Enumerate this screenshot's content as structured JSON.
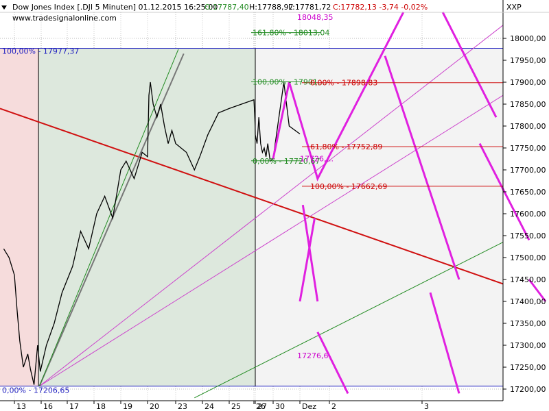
{
  "header": {
    "title": "Dow Jones Index [.DJI  5 Minuten] 01.12.2015 16:25:00",
    "open": "O:17787,40",
    "high": "H:17788,97",
    "low": "L:17781,72",
    "close_change": "C:17782,13 -3,74 -0,02%",
    "website": "www.tradesignalonline.com",
    "axis_name": "XXP"
  },
  "chart_data": {
    "type": "line",
    "title": "Dow Jones Index [.DJI  5 Minuten]",
    "ylim": [
      17180,
      18060
    ],
    "yticks": [
      18000,
      17950,
      17900,
      17850,
      17800,
      17750,
      17700,
      17650,
      17600,
      17550,
      17500,
      17450,
      17400,
      17350,
      17300,
      17250,
      17200
    ],
    "ytick_labels": [
      "18000,00",
      "17950,00",
      "17900,00",
      "17850,00",
      "17800,00",
      "17750,00",
      "17700,00",
      "17650,00",
      "17600,00",
      "17550,00",
      "17500,00",
      "17450,00",
      "17400,00",
      "17350,00",
      "17300,00",
      "17250,00",
      "17200,00"
    ],
    "x_labels": [
      "13",
      "16",
      "17",
      "18",
      "19",
      "20",
      "23",
      "24",
      "25",
      "26",
      "27",
      "30",
      "Dez",
      "2",
      "3"
    ],
    "x_label_days": [
      13,
      16,
      17,
      18,
      19,
      20,
      23,
      24,
      25,
      26,
      27,
      30,
      31,
      32,
      33
    ],
    "price_series": [
      [
        12.6,
        17520
      ],
      [
        12.8,
        17500
      ],
      [
        13.0,
        17460
      ],
      [
        13.3,
        17380
      ],
      [
        13.6,
        17310
      ],
      [
        14.0,
        17250
      ],
      [
        14.5,
        17280
      ],
      [
        14.8,
        17245
      ],
      [
        15.2,
        17210
      ],
      [
        15.6,
        17300
      ],
      [
        15.9,
        17240
      ],
      [
        16.2,
        17300
      ],
      [
        16.5,
        17350
      ],
      [
        16.8,
        17420
      ],
      [
        17.2,
        17480
      ],
      [
        17.5,
        17560
      ],
      [
        17.8,
        17520
      ],
      [
        18.1,
        17600
      ],
      [
        18.4,
        17640
      ],
      [
        18.7,
        17590
      ],
      [
        19.0,
        17700
      ],
      [
        19.2,
        17720
      ],
      [
        19.5,
        17680
      ],
      [
        19.8,
        17740
      ],
      [
        20.0,
        17730
      ],
      [
        20.15,
        17870
      ],
      [
        20.3,
        17900
      ],
      [
        20.6,
        17850
      ],
      [
        21.0,
        17820
      ],
      [
        21.4,
        17850
      ],
      [
        21.8,
        17800
      ],
      [
        22.2,
        17760
      ],
      [
        22.6,
        17790
      ],
      [
        23.0,
        17760
      ],
      [
        23.4,
        17740
      ],
      [
        23.7,
        17700
      ],
      [
        23.9,
        17730
      ],
      [
        24.2,
        17780
      ],
      [
        24.6,
        17830
      ],
      [
        25.0,
        17840
      ],
      [
        25.5,
        17850
      ],
      [
        26.0,
        17860
      ],
      [
        26.5,
        17830
      ],
      [
        26.9,
        17800
      ],
      [
        27.0,
        17780
      ],
      [
        27.3,
        17760
      ],
      [
        27.6,
        17820
      ],
      [
        27.9,
        17760
      ],
      [
        28.2,
        17740
      ],
      [
        28.5,
        17750
      ],
      [
        28.8,
        17730
      ],
      [
        29.1,
        17760
      ],
      [
        29.5,
        17720
      ],
      [
        30.0,
        17726
      ],
      [
        30.4,
        17900
      ],
      [
        30.6,
        17800
      ],
      [
        31.0,
        17782
      ]
    ],
    "fib_blocks": [
      {
        "label": "100,00% - 17977,37",
        "value": 17977.37,
        "color": "#2020c0"
      },
      {
        "label": "0,00% - 17206,65",
        "value": 17206.65,
        "color": "#2020c0"
      },
      {
        "label": "161,80% - 18013,04",
        "value": 18013.04,
        "color": "#228b22"
      },
      {
        "label": "100,00% - 17901,...",
        "value": 17901,
        "color": "#228b22"
      },
      {
        "label": "0,00% - 17720,67",
        "value": 17720.67,
        "color": "#228b22"
      },
      {
        "label": "0,00% - 17898,83",
        "value": 17898.83,
        "color": "#cc0000"
      },
      {
        "label": "61,80% - 17752,89",
        "value": 17752.89,
        "color": "#cc0000"
      },
      {
        "label": "100,00% - 17662,69",
        "value": 17662.69,
        "color": "#cc0000"
      }
    ],
    "annotations": [
      {
        "label": "18048,35",
        "value": 18048.35,
        "color": "#cc00cc"
      },
      {
        "label": "17726,...",
        "value": 17726,
        "color": "#cc00cc"
      },
      {
        "label": "17276,6",
        "value": 17276.6,
        "color": "#cc00cc"
      }
    ],
    "forecast_path": [
      [
        30.0,
        17726
      ],
      [
        30.6,
        17900
      ],
      [
        31.6,
        17680
      ],
      [
        32.8,
        18060
      ]
    ],
    "colors": {
      "price": "#000000",
      "trendline_red": "#d01010",
      "projection": "#e020e0",
      "fan_magenta": "#cc44cc",
      "fan_green": "#228b22",
      "fan_gray": "#777777",
      "zone_pink": "#f6dcdc",
      "zone_green": "#dde8dd",
      "zone_gray": "#f3f3f3",
      "axis_line": "#000000"
    }
  }
}
